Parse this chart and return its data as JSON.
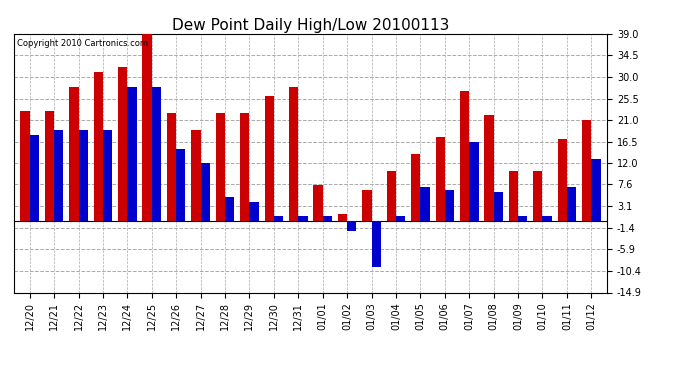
{
  "title": "Dew Point Daily High/Low 20100113",
  "copyright": "Copyright 2010 Cartronics.com",
  "labels": [
    "12/20",
    "12/21",
    "12/22",
    "12/23",
    "12/24",
    "12/25",
    "12/26",
    "12/27",
    "12/28",
    "12/29",
    "12/30",
    "12/31",
    "01/01",
    "01/02",
    "01/03",
    "01/04",
    "01/05",
    "01/06",
    "01/07",
    "01/08",
    "01/09",
    "01/10",
    "01/11",
    "01/12"
  ],
  "highs": [
    23.0,
    23.0,
    28.0,
    31.0,
    32.0,
    39.0,
    22.5,
    19.0,
    22.5,
    22.5,
    26.0,
    28.0,
    7.5,
    1.5,
    6.5,
    10.5,
    14.0,
    17.5,
    27.0,
    22.0,
    10.5,
    10.5,
    17.0,
    21.0
  ],
  "lows": [
    18.0,
    19.0,
    19.0,
    19.0,
    28.0,
    28.0,
    15.0,
    12.0,
    5.0,
    4.0,
    1.0,
    1.0,
    1.0,
    -2.0,
    -9.5,
    1.0,
    7.0,
    6.5,
    16.5,
    6.0,
    1.0,
    1.0,
    7.0,
    13.0
  ],
  "high_color": "#cc0000",
  "low_color": "#0000cc",
  "bg_color": "#ffffff",
  "plot_bg_color": "#ffffff",
  "grid_color": "#aaaaaa",
  "ylim": [
    -14.9,
    39.0
  ],
  "yticks": [
    39.0,
    34.5,
    30.0,
    25.5,
    21.0,
    16.5,
    12.0,
    7.6,
    3.1,
    -1.4,
    -5.9,
    -10.4,
    -14.9
  ],
  "bar_width": 0.38,
  "title_fontsize": 11,
  "tick_fontsize": 7,
  "copyright_fontsize": 6
}
